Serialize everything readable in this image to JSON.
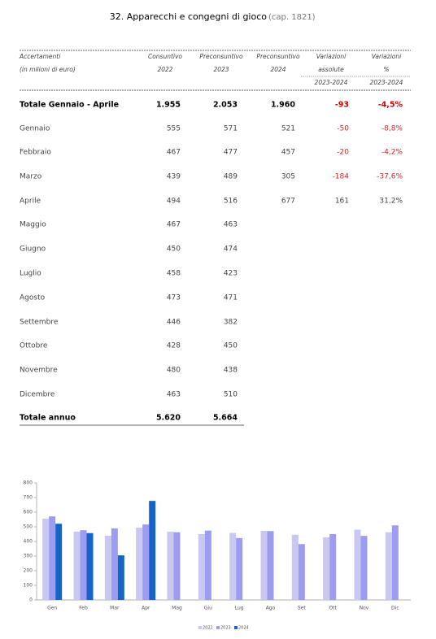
{
  "title": {
    "main": "32. Apparecchi e congegni di gioco",
    "note": "(cap. 1821)"
  },
  "table": {
    "header": [
      [
        "Accertamenti",
        "(in milioni di euro)"
      ],
      [
        "Consuntivo",
        "2022"
      ],
      [
        "Preconsuntivo",
        "2023"
      ],
      [
        "Preconsuntivo",
        "2024"
      ],
      [
        "Variazioni",
        "assolute",
        "2023-2024"
      ],
      [
        "Variazioni",
        "%",
        "2023-2024"
      ]
    ],
    "rows": [
      {
        "cells": [
          "Totale Gennaio - Aprile",
          "1.955",
          "2.053",
          "1.960",
          "-93",
          "-4,5%"
        ],
        "bold": true
      },
      {
        "cells": [
          "Gennaio",
          "555",
          "571",
          "521",
          "-50",
          "-8,8%"
        ]
      },
      {
        "cells": [
          "Febbraio",
          "467",
          "477",
          "457",
          "-20",
          "-4,2%"
        ]
      },
      {
        "cells": [
          "Marzo",
          "439",
          "489",
          "305",
          "-184",
          "-37,6%"
        ]
      },
      {
        "cells": [
          "Aprile",
          "494",
          "516",
          "677",
          "161",
          "31,2%"
        ]
      },
      {
        "cells": [
          "Maggio",
          "467",
          "463"
        ]
      },
      {
        "cells": [
          "Giugno",
          "450",
          "474"
        ]
      },
      {
        "cells": [
          "Luglio",
          "458",
          "423"
        ]
      },
      {
        "cells": [
          "Agosto",
          "473",
          "471"
        ]
      },
      {
        "cells": [
          "Settembre",
          "446",
          "382"
        ]
      },
      {
        "cells": [
          "Ottobre",
          "428",
          "450"
        ]
      },
      {
        "cells": [
          "Novembre",
          "480",
          "438"
        ]
      },
      {
        "cells": [
          "Dicembre",
          "463",
          "510"
        ]
      },
      {
        "cells": [
          "Totale annuo",
          "5.620",
          "5.664"
        ],
        "bold": true
      }
    ]
  },
  "chart_data": {
    "type": "bar",
    "categories": [
      "Gen",
      "Feb",
      "Mar",
      "Apr",
      "Mag",
      "Giu",
      "Lug",
      "Ago",
      "Set",
      "Ott",
      "Nov",
      "Dic"
    ],
    "series": [
      {
        "name": "2022",
        "color": "#c8c8f0",
        "values": [
          555,
          467,
          439,
          494,
          467,
          450,
          458,
          473,
          446,
          428,
          480,
          463
        ]
      },
      {
        "name": "2023",
        "color": "#9c9cf0",
        "values": [
          571,
          477,
          489,
          516,
          463,
          474,
          423,
          471,
          382,
          450,
          438,
          510
        ]
      },
      {
        "name": "2024",
        "color": "#1565c8",
        "values": [
          521,
          457,
          305,
          677,
          null,
          null,
          null,
          null,
          null,
          null,
          null,
          null
        ]
      }
    ],
    "ylim": [
      0,
      800
    ],
    "yticks": [
      0,
      100,
      200,
      300,
      400,
      500,
      600,
      700,
      800
    ],
    "legend": "bottom"
  }
}
